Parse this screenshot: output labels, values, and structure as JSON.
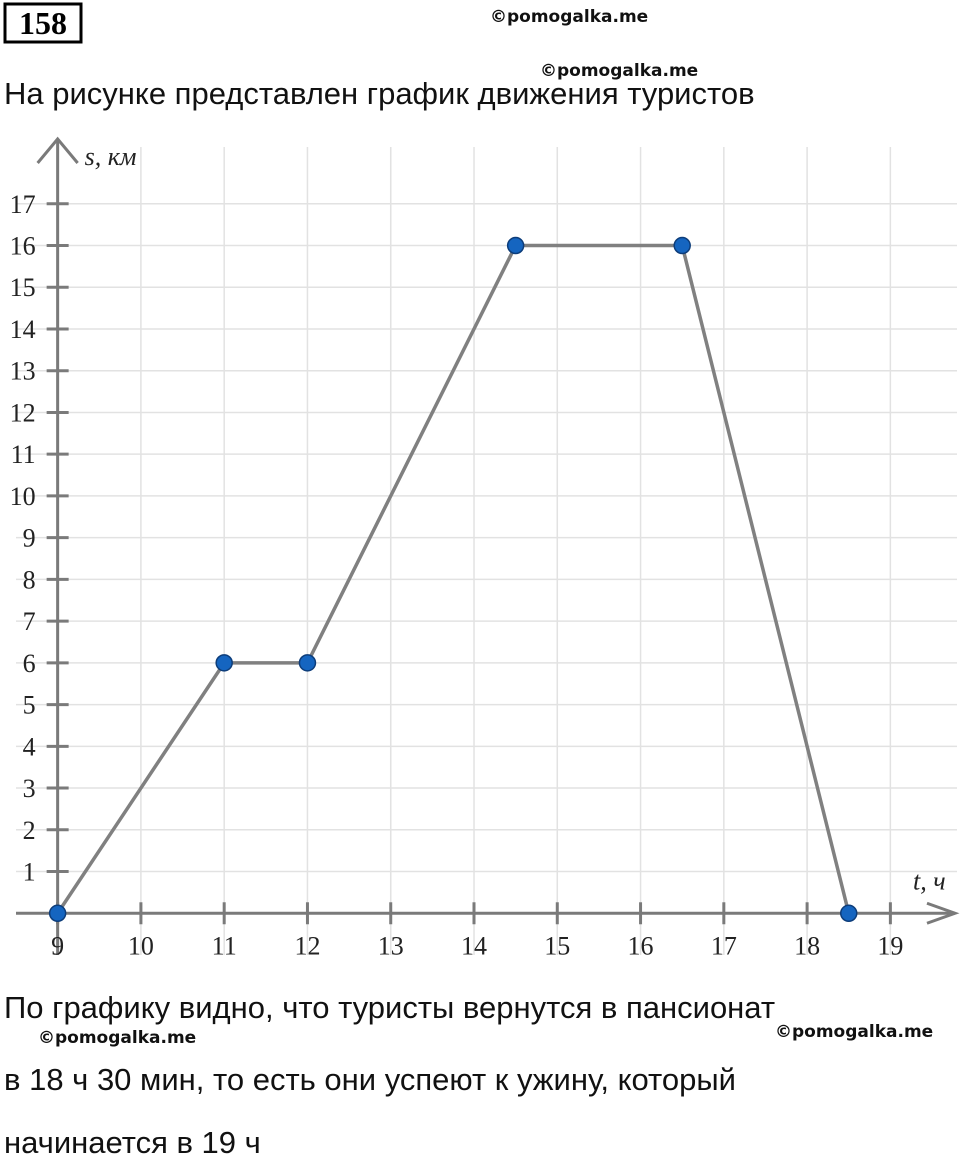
{
  "header": {
    "number": "158"
  },
  "watermarks": [
    "©pomogalka.me",
    "©pomogalka.me",
    "©pomogalka.me",
    "©pomogalka.me"
  ],
  "intro": "На рисунке представлен график движения туристов",
  "chart_data": {
    "type": "line",
    "x_label": "t, ч",
    "y_label": "s, км",
    "x": [
      9,
      11,
      12,
      14.5,
      16.5,
      18.5
    ],
    "values": [
      0,
      6,
      6,
      16,
      16,
      0
    ],
    "color": "#1565c0",
    "line_color": "#808080",
    "xlim": [
      8.5,
      19.8
    ],
    "ylim": [
      -1,
      18.6
    ],
    "xticks": [
      9,
      10,
      11,
      12,
      13,
      14,
      15,
      16,
      17,
      18,
      19
    ],
    "yticks": [
      1,
      2,
      3,
      4,
      5,
      6,
      7,
      8,
      9,
      10,
      11,
      12,
      13,
      14,
      15,
      16,
      17
    ],
    "grid": true
  },
  "conclusion": [
    "По графику видно, что туристы вернутся в пансионат",
    "в 18 ч 30 мин, то есть они успеют к ужину, который",
    "начинается в 19 ч"
  ]
}
